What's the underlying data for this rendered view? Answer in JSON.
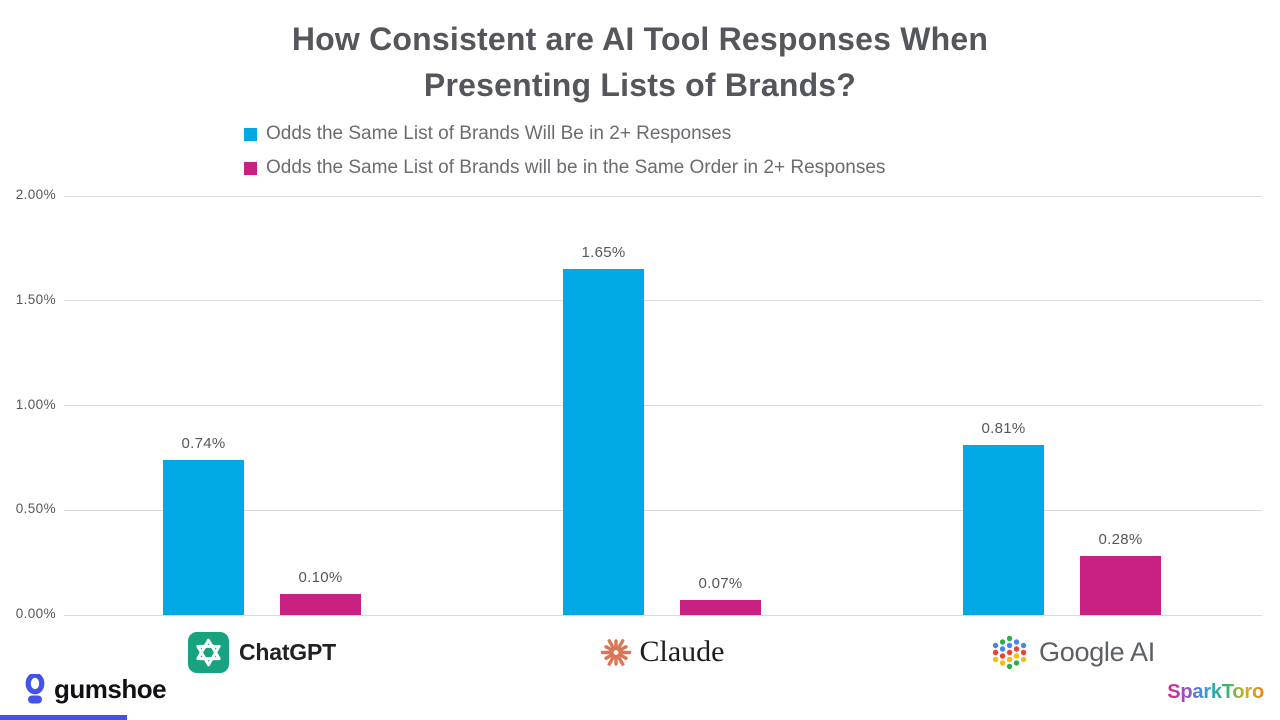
{
  "title": {
    "line1": "How Consistent are AI Tool Responses When",
    "line2": "Presenting Lists of Brands?"
  },
  "legend": [
    {
      "label": "Odds the Same List of Brands Will Be in 2+ Responses",
      "color": "#00A9E4"
    },
    {
      "label": "Odds the Same List of Brands will be in the Same Order in 2+ Responses",
      "color": "#C92182"
    }
  ],
  "chart_data": {
    "type": "bar",
    "categories": [
      "ChatGPT",
      "Claude",
      "Google AI"
    ],
    "series": [
      {
        "name": "Odds the Same List of Brands Will Be in 2+ Responses",
        "color": "#00A9E4",
        "values": [
          0.74,
          1.65,
          0.81
        ],
        "value_labels": [
          "0.74%",
          "1.65%",
          "0.81%"
        ]
      },
      {
        "name": "Odds the Same List of Brands will be in the Same Order in 2+ Responses",
        "color": "#C92182",
        "values": [
          0.1,
          0.07,
          0.28
        ],
        "value_labels": [
          "0.10%",
          "0.07%",
          "0.28%"
        ]
      }
    ],
    "ylim": [
      0,
      2
    ],
    "yticks": [
      "2.00%",
      "1.50%",
      "1.00%",
      "0.50%",
      "0.00%"
    ],
    "grid": true,
    "legend_position": "top-left"
  },
  "brands": {
    "chatgpt": {
      "label": "ChatGPT",
      "icon_color": "#17A37F"
    },
    "claude": {
      "label": "Claude",
      "icon_color": "#D97757"
    },
    "google": {
      "label": "Google AI",
      "dot_colors": [
        "#4285F4",
        "#EA4335",
        "#FBBC04",
        "#34A853"
      ]
    }
  },
  "footer": {
    "left_brand": "gumshoe",
    "left_brand_color": "#4353E8",
    "right_brand": "SparkToro",
    "right_brand_gradient": [
      "#E0218A",
      "#9B4DCA",
      "#2D9FD8",
      "#2AB573",
      "#C8B226",
      "#E8821E"
    ]
  }
}
